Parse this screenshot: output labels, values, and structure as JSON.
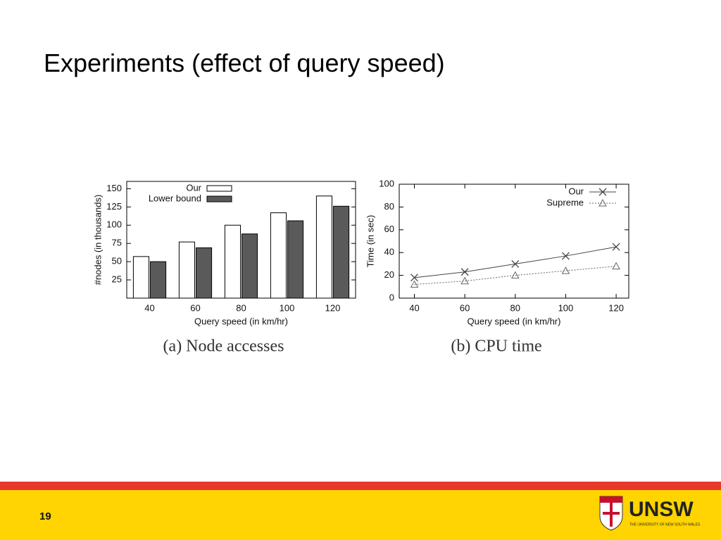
{
  "slide": {
    "title": "Experiments (effect of query speed)",
    "page_number": "19",
    "logo": {
      "name": "UNSW",
      "subtitle": "THE UNIVERSITY OF NEW SOUTH WALES"
    }
  },
  "chart_data": [
    {
      "type": "bar",
      "caption": "(a) Node accesses",
      "x_label": "Query speed (in km/hr)",
      "y_label": "#nodes (in thousands)",
      "categories": [
        "40",
        "60",
        "80",
        "100",
        "120"
      ],
      "series": [
        {
          "name": "Our",
          "color": "#ffffff",
          "values": [
            57,
            77,
            100,
            117,
            140
          ]
        },
        {
          "name": "Lower bound",
          "color": "#5a5a5a",
          "values": [
            50,
            69,
            88,
            106,
            126
          ]
        }
      ],
      "ylim": [
        0,
        160
      ],
      "yticks": [
        25,
        50,
        75,
        100,
        125,
        150
      ],
      "legend": "top"
    },
    {
      "type": "line",
      "caption": "(b) CPU time",
      "x_label": "Query speed (in km/hr)",
      "y_label": "Time (in sec)",
      "x": [
        40,
        60,
        80,
        100,
        120
      ],
      "series": [
        {
          "name": "Our",
          "color": "#444444",
          "linestyle": "solid",
          "marker": "x",
          "values": [
            18,
            23,
            30,
            37,
            45
          ]
        },
        {
          "name": "Supreme",
          "color": "#666666",
          "linestyle": "dotted",
          "marker": "triangle",
          "values": [
            12,
            15,
            20,
            24,
            28
          ]
        }
      ],
      "xlim": [
        34,
        125
      ],
      "xticks": [
        40,
        60,
        80,
        100,
        120
      ],
      "ylim": [
        0,
        100
      ],
      "yticks": [
        0,
        20,
        40,
        60,
        80,
        100
      ],
      "legend": "top-right"
    }
  ]
}
